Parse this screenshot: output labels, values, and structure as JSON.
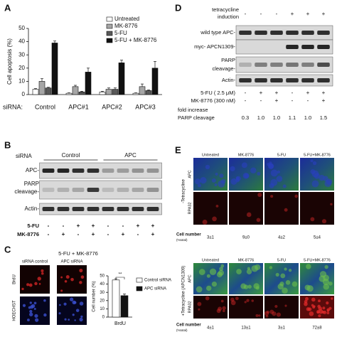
{
  "labels": [
    "A",
    "B",
    "C",
    "D",
    "E"
  ],
  "chart_data": [
    {
      "type": "bar",
      "y_label": "Cell apoptosis (%)",
      "x_label": "siRNA:",
      "categories": [
        "Control",
        "APC#1",
        "APC#2",
        "APC#3"
      ],
      "series": [
        {
          "name": "Untreated",
          "color": "#ffffff",
          "values": [
            4,
            1,
            2,
            1
          ],
          "errors": [
            0.5,
            0.3,
            0.5,
            0.3
          ]
        },
        {
          "name": "MK-8776",
          "color": "#a6a6a6",
          "values": [
            10,
            6,
            4,
            6
          ],
          "errors": [
            2,
            1,
            1,
            2
          ]
        },
        {
          "name": "5-FU",
          "color": "#595959",
          "values": [
            5,
            2,
            4,
            3
          ],
          "errors": [
            0.5,
            0.5,
            1,
            0.5
          ]
        },
        {
          "name": "5-FU + MK-8776",
          "color": "#111111",
          "values": [
            39,
            17,
            24,
            20
          ],
          "errors": [
            1.5,
            3,
            2,
            5
          ]
        }
      ],
      "ylim": [
        0,
        50
      ],
      "yticks": [
        0,
        10,
        20,
        30,
        40,
        50
      ],
      "grid": false
    },
    {
      "type": "bar",
      "y_label": "Cell number (%)",
      "annotation": "**",
      "categories": [
        "BrdU"
      ],
      "series": [
        {
          "name": "Control siRNA",
          "color": "#ffffff",
          "values": [
            45
          ],
          "errors": [
            1.5
          ]
        },
        {
          "name": "APC siRNA",
          "color": "#111111",
          "values": [
            26
          ],
          "errors": [
            2
          ]
        }
      ],
      "ylim": [
        0,
        50
      ],
      "yticks": [
        0,
        10,
        20,
        30,
        40,
        50
      ],
      "grid": false
    }
  ],
  "blot_b": {
    "header": "siRNA",
    "groups": [
      "Control",
      "APC"
    ],
    "rows": [
      "APC-",
      "PARP",
      "cleavage-",
      "Actin-"
    ],
    "treatments": [
      {
        "name": "5-FU",
        "signs": [
          "-",
          "-",
          "+",
          "+",
          "-",
          "-",
          "+",
          "+"
        ]
      },
      {
        "name": "MK-8776",
        "signs": [
          "-",
          "+",
          "-",
          "+",
          "-",
          "+",
          "-",
          "+"
        ]
      }
    ]
  },
  "images_c": {
    "title": "5-FU + MK-8776",
    "columns": [
      "siRNA control",
      "APC siRNA"
    ],
    "rows": [
      "BrdU",
      "HOECHST"
    ]
  },
  "blot_d": {
    "header": [
      "tetracycline",
      "induction"
    ],
    "tet_signs": [
      "-",
      "-",
      "-",
      "+",
      "+",
      "+"
    ],
    "rows": [
      "wild type APC-",
      "myc- APCN1309-",
      "PARP",
      "cleavage-",
      "Actin-"
    ],
    "treatments": [
      {
        "name": "5-FU ( 2.5 μM)",
        "signs": [
          "-",
          "+",
          "+",
          "-",
          "+",
          "+"
        ]
      },
      {
        "name": "MK-8776 (300 nM)",
        "signs": [
          "-",
          "-",
          "+",
          "-",
          "-",
          "+"
        ]
      }
    ],
    "fold_label": [
      "fold increase",
      "PARP cleavage"
    ],
    "fold_values": [
      "0.3",
      "1.0",
      "1.0",
      "1.1",
      "1.0",
      "1.5"
    ]
  },
  "panel_e": {
    "blocks": [
      {
        "side_label": "-Tetracycline",
        "columns": [
          "Untreated",
          "MK-8776",
          "5-FU",
          "5-FU+MK-8776"
        ],
        "rows": [
          "APC",
          "RPA32"
        ],
        "count_label": [
          "Cell number",
          "(%total)"
        ],
        "counts": [
          "3±1",
          "9±0",
          "4±2",
          "5±4"
        ]
      },
      {
        "side_label": "+Tetracycline (APCN1309)",
        "columns": [
          "Untreated",
          "MK-8776",
          "5-FU",
          "5-FU+MK-8776"
        ],
        "rows": [
          "APC",
          "RPA32"
        ],
        "count_label": [
          "Cell number",
          "(%total)"
        ],
        "counts": [
          "4±1",
          "13±1",
          "3±1",
          "72±8"
        ]
      }
    ]
  }
}
